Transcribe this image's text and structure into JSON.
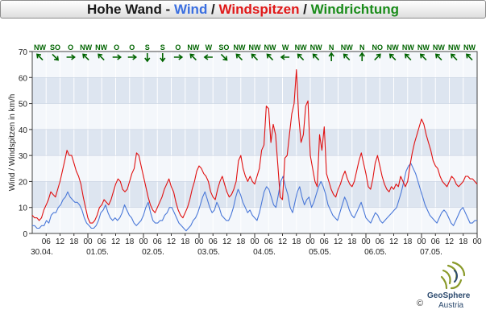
{
  "header": {
    "title_station": "Hohe Wand - ",
    "title_wind": "Wind",
    "sep1": " / ",
    "title_gusts": "Windspitzen",
    "sep2": " / ",
    "title_direction": "Windrichtung"
  },
  "footer": {
    "logo_name": "GeoSphere",
    "logo_sub": "Austria",
    "copyright": "©"
  },
  "colors": {
    "wind": "#4a78d8",
    "gusts": "#e01010",
    "direction": "#006400",
    "band_dark": "#dde5f0",
    "band_light": "#f4f7fb",
    "grid": "#ffffff"
  },
  "chart_data": {
    "type": "line",
    "ylabel": "Wind / Windspitzen in km/h",
    "ylim": [
      0,
      70
    ],
    "yticks": [
      0,
      10,
      20,
      30,
      40,
      50,
      60,
      70
    ],
    "xlim_hours": [
      0,
      192
    ],
    "x_tick_labels": [
      "06",
      "12",
      "18",
      "00",
      "06",
      "12",
      "18",
      "00",
      "06",
      "12",
      "18",
      "00",
      "06",
      "12",
      "18",
      "00",
      "06",
      "12",
      "18",
      "00",
      "06",
      "12",
      "18",
      "00",
      "06",
      "12",
      "18",
      "00",
      "06",
      "12",
      "18",
      "00",
      "06",
      "12"
    ],
    "date_labels": [
      "30.04.",
      "01.05.",
      "02.05.",
      "03.05.",
      "04.05.",
      "05.05.",
      "06.05.",
      "07.05."
    ],
    "directions": [
      "NW",
      "SO",
      "O",
      "NW",
      "NW",
      "O",
      "O",
      "S",
      "S",
      "O",
      "NW",
      "W",
      "SO",
      "NW",
      "NW",
      "NW",
      "W",
      "NW",
      "NW",
      "N",
      "NW",
      "N",
      "NO",
      "NW",
      "NW",
      "NW",
      "NW",
      "NW",
      "NW"
    ],
    "series": [
      {
        "name": "Wind",
        "values": [
          3,
          3,
          2,
          2,
          3,
          3,
          5,
          4,
          7,
          8,
          8,
          10,
          11,
          13,
          14,
          16,
          14,
          13,
          12,
          12,
          11,
          9,
          6,
          4,
          3,
          2,
          2,
          3,
          5,
          8,
          9,
          11,
          8,
          6,
          5,
          6,
          5,
          6,
          8,
          11,
          9,
          7,
          6,
          4,
          3,
          4,
          5,
          7,
          10,
          12,
          8,
          5,
          4,
          4,
          5,
          5,
          7,
          8,
          10,
          10,
          8,
          6,
          4,
          3,
          2,
          1,
          2,
          3,
          5,
          6,
          8,
          11,
          14,
          16,
          13,
          10,
          8,
          9,
          12,
          10,
          7,
          6,
          5,
          5,
          7,
          10,
          14,
          17,
          15,
          12,
          10,
          8,
          9,
          7,
          6,
          5,
          8,
          12,
          16,
          18,
          17,
          14,
          11,
          10,
          15,
          20,
          22,
          18,
          15,
          10,
          8,
          12,
          16,
          18,
          14,
          11,
          13,
          14,
          10,
          12,
          15,
          18,
          20,
          18,
          15,
          11,
          9,
          7,
          6,
          5,
          8,
          11,
          14,
          12,
          9,
          7,
          6,
          8,
          10,
          12,
          9,
          6,
          5,
          4,
          6,
          8,
          7,
          5,
          4,
          5,
          6,
          7,
          8,
          9,
          10,
          13,
          16,
          20,
          24,
          26,
          27,
          25,
          23,
          20,
          17,
          14,
          11,
          9,
          7,
          6,
          5,
          4,
          6,
          8,
          9,
          8,
          6,
          4,
          3,
          5,
          7,
          9,
          10,
          8,
          6,
          4,
          4,
          5,
          5
        ],
        "color": "#4a78d8"
      },
      {
        "name": "Windspitzen",
        "values": [
          7,
          6,
          6,
          5,
          6,
          9,
          11,
          13,
          16,
          15,
          14,
          17,
          20,
          24,
          28,
          32,
          30,
          30,
          27,
          24,
          22,
          19,
          14,
          10,
          6,
          4,
          4,
          5,
          7,
          10,
          11,
          13,
          12,
          11,
          13,
          16,
          19,
          21,
          20,
          17,
          16,
          17,
          20,
          23,
          25,
          31,
          30,
          26,
          22,
          18,
          14,
          11,
          9,
          8,
          10,
          12,
          14,
          17,
          19,
          21,
          18,
          16,
          12,
          9,
          7,
          6,
          8,
          10,
          13,
          17,
          20,
          24,
          26,
          25,
          23,
          22,
          20,
          16,
          14,
          13,
          17,
          20,
          22,
          19,
          16,
          14,
          15,
          17,
          20,
          28,
          30,
          25,
          22,
          20,
          22,
          20,
          19,
          22,
          25,
          32,
          34,
          49,
          48,
          35,
          42,
          38,
          26,
          14,
          13,
          29,
          30,
          38,
          46,
          50,
          63,
          45,
          35,
          38,
          49,
          51,
          30,
          25,
          20,
          18,
          38,
          32,
          41,
          23,
          20,
          17,
          15,
          14,
          17,
          19,
          22,
          24,
          21,
          19,
          18,
          20,
          24,
          28,
          31,
          27,
          23,
          18,
          17,
          21,
          27,
          30,
          26,
          22,
          19,
          17,
          16,
          18,
          17,
          19,
          18,
          22,
          20,
          18,
          20,
          26,
          31,
          35,
          38,
          41,
          44,
          42,
          38,
          35,
          32,
          28,
          26,
          25,
          22,
          20,
          19,
          18,
          20,
          22,
          21,
          19,
          18,
          19,
          20,
          22,
          22,
          21,
          21,
          20,
          19
        ],
        "color": "#e01010"
      }
    ],
    "grid": true
  }
}
